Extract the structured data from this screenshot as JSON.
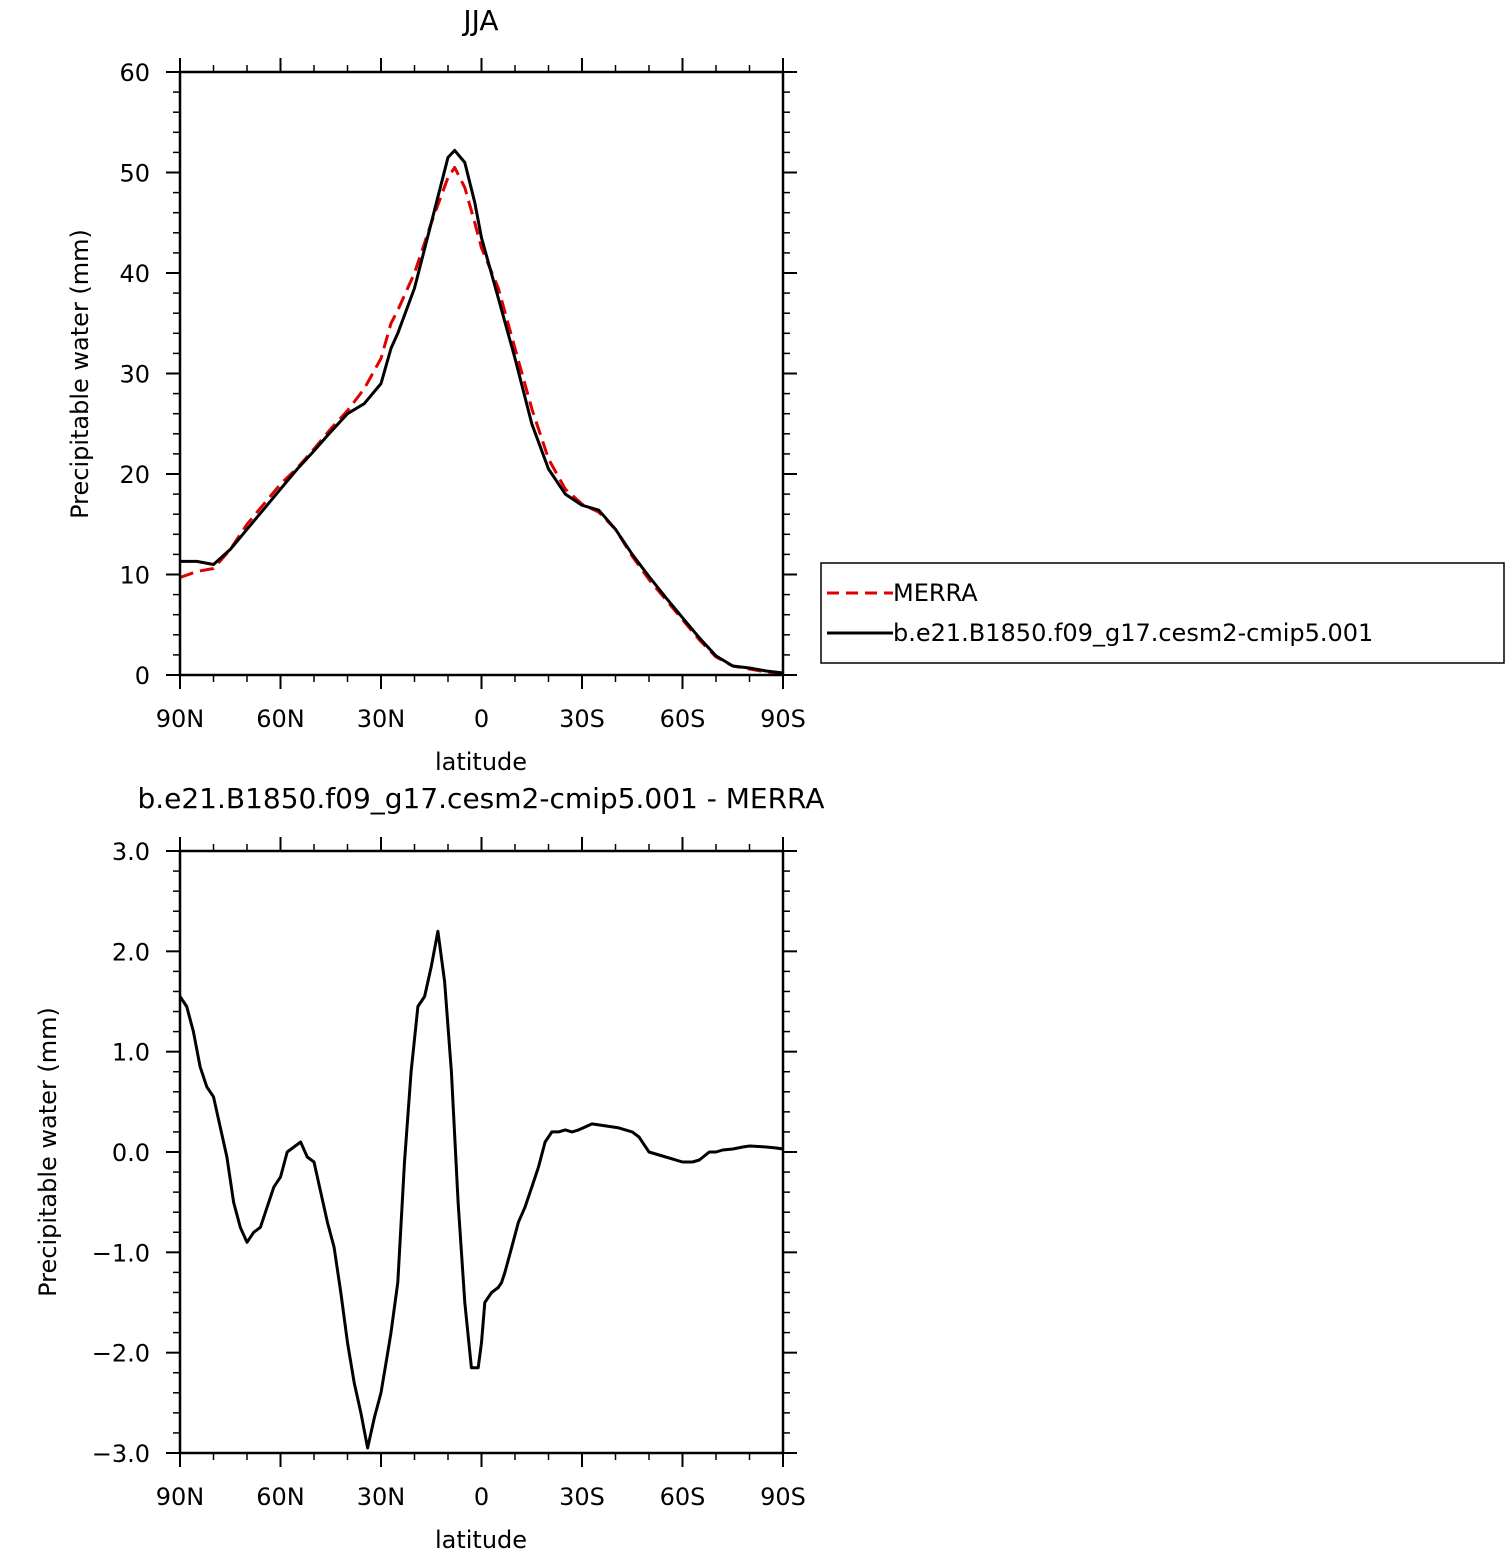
{
  "chart_data": [
    {
      "type": "line",
      "title": "JJA",
      "xlabel": "latitude",
      "ylabel": "Precipitable water (mm)",
      "xlim": [
        90,
        -90
      ],
      "ylim": [
        0,
        60
      ],
      "x_ticks": [
        90,
        60,
        30,
        0,
        -30,
        -60,
        -90
      ],
      "x_tick_labels": [
        "90N",
        "60N",
        "30N",
        "0",
        "30S",
        "60S",
        "90S"
      ],
      "y_ticks": [
        0,
        10,
        20,
        30,
        40,
        50,
        60
      ],
      "y_tick_labels": [
        "0",
        "10",
        "20",
        "30",
        "40",
        "50",
        "60"
      ],
      "legend_position": "right",
      "series": [
        {
          "name": "MERRA",
          "color": "#e00000",
          "style": "dashed",
          "x": [
            90,
            85,
            80,
            75,
            70,
            65,
            60,
            55,
            50,
            45,
            40,
            35,
            30,
            27,
            25,
            20,
            15,
            10,
            8,
            5,
            2,
            0,
            -5,
            -10,
            -15,
            -20,
            -25,
            -30,
            -35,
            -40,
            -45,
            -50,
            -55,
            -60,
            -65,
            -70,
            -75,
            -80,
            -85,
            -90
          ],
          "values": [
            9.7,
            10.3,
            10.6,
            12.5,
            15.0,
            17.0,
            19.0,
            20.6,
            22.5,
            24.5,
            26.3,
            28.5,
            31.5,
            35.0,
            36.3,
            40.0,
            45.0,
            49.5,
            50.5,
            48.5,
            45.0,
            42.5,
            38.5,
            32.5,
            26.5,
            21.5,
            18.5,
            17.0,
            16.2,
            14.5,
            11.8,
            9.5,
            7.5,
            5.5,
            3.5,
            1.8,
            0.9,
            0.6,
            0.3,
            0.2
          ]
        },
        {
          "name": "b.e21.B1850.f09_g17.cesm2-cmip5.001",
          "color": "#000000",
          "style": "solid",
          "x": [
            90,
            85,
            80,
            75,
            70,
            65,
            60,
            55,
            50,
            45,
            40,
            35,
            30,
            27,
            25,
            20,
            15,
            10,
            8,
            5,
            2,
            0,
            -5,
            -10,
            -15,
            -20,
            -25,
            -30,
            -35,
            -40,
            -45,
            -50,
            -55,
            -60,
            -65,
            -70,
            -75,
            -80,
            -85,
            -90
          ],
          "values": [
            11.3,
            11.3,
            11.0,
            12.5,
            14.5,
            16.5,
            18.5,
            20.5,
            22.3,
            24.2,
            26.0,
            27.0,
            29.0,
            32.5,
            34.0,
            38.5,
            45.0,
            51.5,
            52.2,
            51.0,
            47.0,
            43.5,
            37.5,
            31.5,
            25.0,
            20.5,
            18.0,
            16.9,
            16.4,
            14.5,
            12.0,
            9.8,
            7.7,
            5.7,
            3.7,
            1.9,
            0.9,
            0.7,
            0.4,
            0.2
          ]
        }
      ]
    },
    {
      "type": "line",
      "title": "b.e21.B1850.f09_g17.cesm2-cmip5.001 - MERRA",
      "xlabel": "latitude",
      "ylabel": "Precipitable water (mm)",
      "xlim": [
        90,
        -90
      ],
      "ylim": [
        -3.0,
        3.0
      ],
      "x_ticks": [
        90,
        60,
        30,
        0,
        -30,
        -60,
        -90
      ],
      "x_tick_labels": [
        "90N",
        "60N",
        "30N",
        "0",
        "30S",
        "60S",
        "90S"
      ],
      "y_ticks": [
        -3,
        -2,
        -1,
        0,
        1,
        2,
        3
      ],
      "y_tick_labels": [
        "−3.0",
        "−2.0",
        "−1.0",
        "0.0",
        "1.0",
        "2.0",
        "3.0"
      ],
      "series": [
        {
          "color": "#000000",
          "style": "solid",
          "x": [
            90,
            88,
            86,
            84,
            82,
            80,
            78,
            76,
            74,
            72,
            70,
            68,
            66,
            64,
            62,
            60,
            58,
            56,
            54,
            52,
            50,
            48,
            46,
            44,
            42,
            40,
            38,
            36,
            34,
            32,
            30,
            28,
            27,
            25,
            23,
            21,
            19,
            17,
            15,
            13,
            11,
            9,
            7,
            5,
            3,
            1,
            0,
            -1,
            -3,
            -5,
            -6,
            -7,
            -9,
            -11,
            -13,
            -15,
            -17,
            -19,
            -21,
            -23,
            -25,
            -27,
            -29,
            -31,
            -33,
            -35,
            -37,
            -39,
            -41,
            -43,
            -45,
            -47,
            -50,
            -55,
            -60,
            -63,
            -65,
            -68,
            -70,
            -72,
            -75,
            -78,
            -80,
            -85,
            -88,
            -90
          ],
          "values": [
            1.55,
            1.45,
            1.2,
            0.85,
            0.65,
            0.55,
            0.25,
            -0.05,
            -0.5,
            -0.75,
            -0.9,
            -0.8,
            -0.75,
            -0.55,
            -0.35,
            -0.25,
            0.0,
            0.05,
            0.1,
            -0.05,
            -0.1,
            -0.4,
            -0.7,
            -0.95,
            -1.4,
            -1.9,
            -2.3,
            -2.6,
            -2.95,
            -2.65,
            -2.4,
            -2.0,
            -1.8,
            -1.3,
            -0.1,
            0.8,
            1.45,
            1.55,
            1.85,
            2.2,
            1.7,
            0.8,
            -0.5,
            -1.5,
            -2.15,
            -2.15,
            -1.9,
            -1.5,
            -1.4,
            -1.35,
            -1.3,
            -1.2,
            -0.95,
            -0.7,
            -0.55,
            -0.35,
            -0.15,
            0.1,
            0.2,
            0.2,
            0.22,
            0.2,
            0.22,
            0.25,
            0.28,
            0.27,
            0.26,
            0.25,
            0.24,
            0.22,
            0.2,
            0.15,
            0.0,
            -0.05,
            -0.1,
            -0.1,
            -0.08,
            0.0,
            0.0,
            0.02,
            0.03,
            0.05,
            0.06,
            0.05,
            0.04,
            0.03
          ]
        }
      ]
    }
  ]
}
